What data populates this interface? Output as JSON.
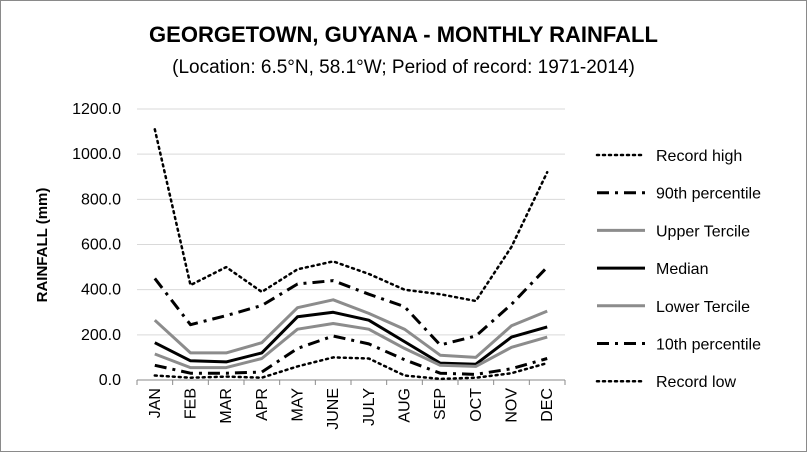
{
  "chart_data": {
    "type": "line",
    "title": "GEORGETOWN, GUYANA - MONTHLY RAINFALL",
    "subtitle": "(Location: 6.5°N, 58.1°W; Period of record: 1971-2014)",
    "ylabel": "RAINFALL (mm)",
    "xlabel": "",
    "ylim": [
      0,
      1200
    ],
    "yticks": [
      "0.0",
      "200.0",
      "400.0",
      "600.0",
      "800.0",
      "1000.0",
      "1200.0"
    ],
    "categories": [
      "JAN",
      "FEB",
      "MAR",
      "APR",
      "MAY",
      "JUNE",
      "JULY",
      "AUG",
      "SEP",
      "OCT",
      "NOV",
      "DEC"
    ],
    "grid": "horizontal",
    "legend": "right",
    "series": [
      {
        "name": "Record high",
        "style": "dotted",
        "color": "#000000",
        "values": [
          1110,
          420,
          500,
          390,
          490,
          525,
          470,
          400,
          380,
          350,
          590,
          920
        ]
      },
      {
        "name": "90th percentile",
        "style": "dashdot",
        "color": "#000000",
        "values": [
          450,
          245,
          285,
          330,
          425,
          440,
          380,
          325,
          155,
          195,
          335,
          500
        ]
      },
      {
        "name": "Upper Tercile",
        "style": "solid",
        "color": "#8c8c8c",
        "values": [
          265,
          120,
          120,
          165,
          320,
          355,
          295,
          225,
          110,
          100,
          240,
          305
        ]
      },
      {
        "name": "Median",
        "style": "solid",
        "color": "#000000",
        "values": [
          165,
          85,
          80,
          120,
          280,
          300,
          265,
          170,
          75,
          70,
          190,
          235
        ]
      },
      {
        "name": "Lower Tercile",
        "style": "solid",
        "color": "#8c8c8c",
        "values": [
          115,
          55,
          55,
          95,
          225,
          250,
          225,
          140,
          65,
          60,
          145,
          190
        ]
      },
      {
        "name": "10th percentile",
        "style": "dashdot",
        "color": "#000000",
        "values": [
          65,
          30,
          30,
          35,
          140,
          195,
          160,
          90,
          30,
          25,
          50,
          95
        ]
      },
      {
        "name": "Record low",
        "style": "dotted",
        "color": "#000000",
        "values": [
          20,
          10,
          15,
          10,
          60,
          100,
          95,
          20,
          5,
          10,
          30,
          75
        ]
      }
    ]
  }
}
